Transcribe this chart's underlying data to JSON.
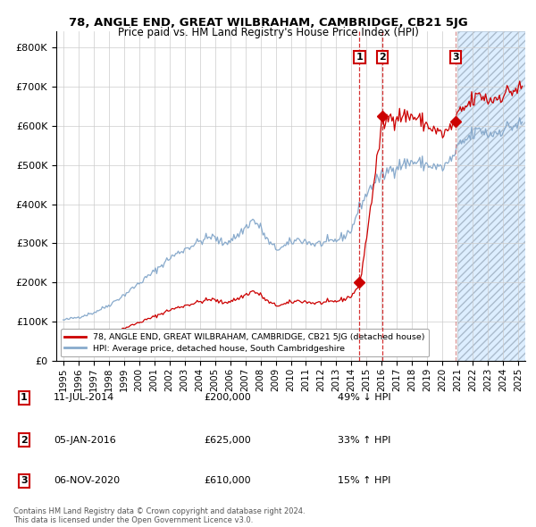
{
  "title1": "78, ANGLE END, GREAT WILBRAHAM, CAMBRIDGE, CB21 5JG",
  "title2": "Price paid vs. HM Land Registry's House Price Index (HPI)",
  "legend_red": "78, ANGLE END, GREAT WILBRAHAM, CAMBRIDGE, CB21 5JG (detached house)",
  "legend_blue": "HPI: Average price, detached house, South Cambridgeshire",
  "transactions": [
    {
      "num": 1,
      "date": "11-JUL-2014",
      "price": 200000,
      "rel": "49% ↓ HPI"
    },
    {
      "num": 2,
      "date": "05-JAN-2016",
      "price": 625000,
      "rel": "33% ↑ HPI"
    },
    {
      "num": 3,
      "date": "06-NOV-2020",
      "price": 610000,
      "rel": "15% ↑ HPI"
    }
  ],
  "transaction_dates_num": [
    2014.527,
    2016.014,
    2020.846
  ],
  "transaction_prices": [
    200000,
    625000,
    610000
  ],
  "ytick_labels": [
    "£0",
    "£100K",
    "£200K",
    "£300K",
    "£400K",
    "£500K",
    "£600K",
    "£700K",
    "£800K"
  ],
  "yticks": [
    0,
    100000,
    200000,
    300000,
    400000,
    500000,
    600000,
    700000,
    800000
  ],
  "xmin": 1994.55,
  "xmax": 2025.45,
  "ymin": 0,
  "ymax": 840000,
  "shaded_region_start": 2021.0,
  "shaded_region_color": "#ddeeff",
  "grid_color": "#cccccc",
  "red_line_color": "#cc0000",
  "blue_line_color": "#88aacc",
  "copyright_text": "Contains HM Land Registry data © Crown copyright and database right 2024.\nThis data is licensed under the Open Government Licence v3.0."
}
